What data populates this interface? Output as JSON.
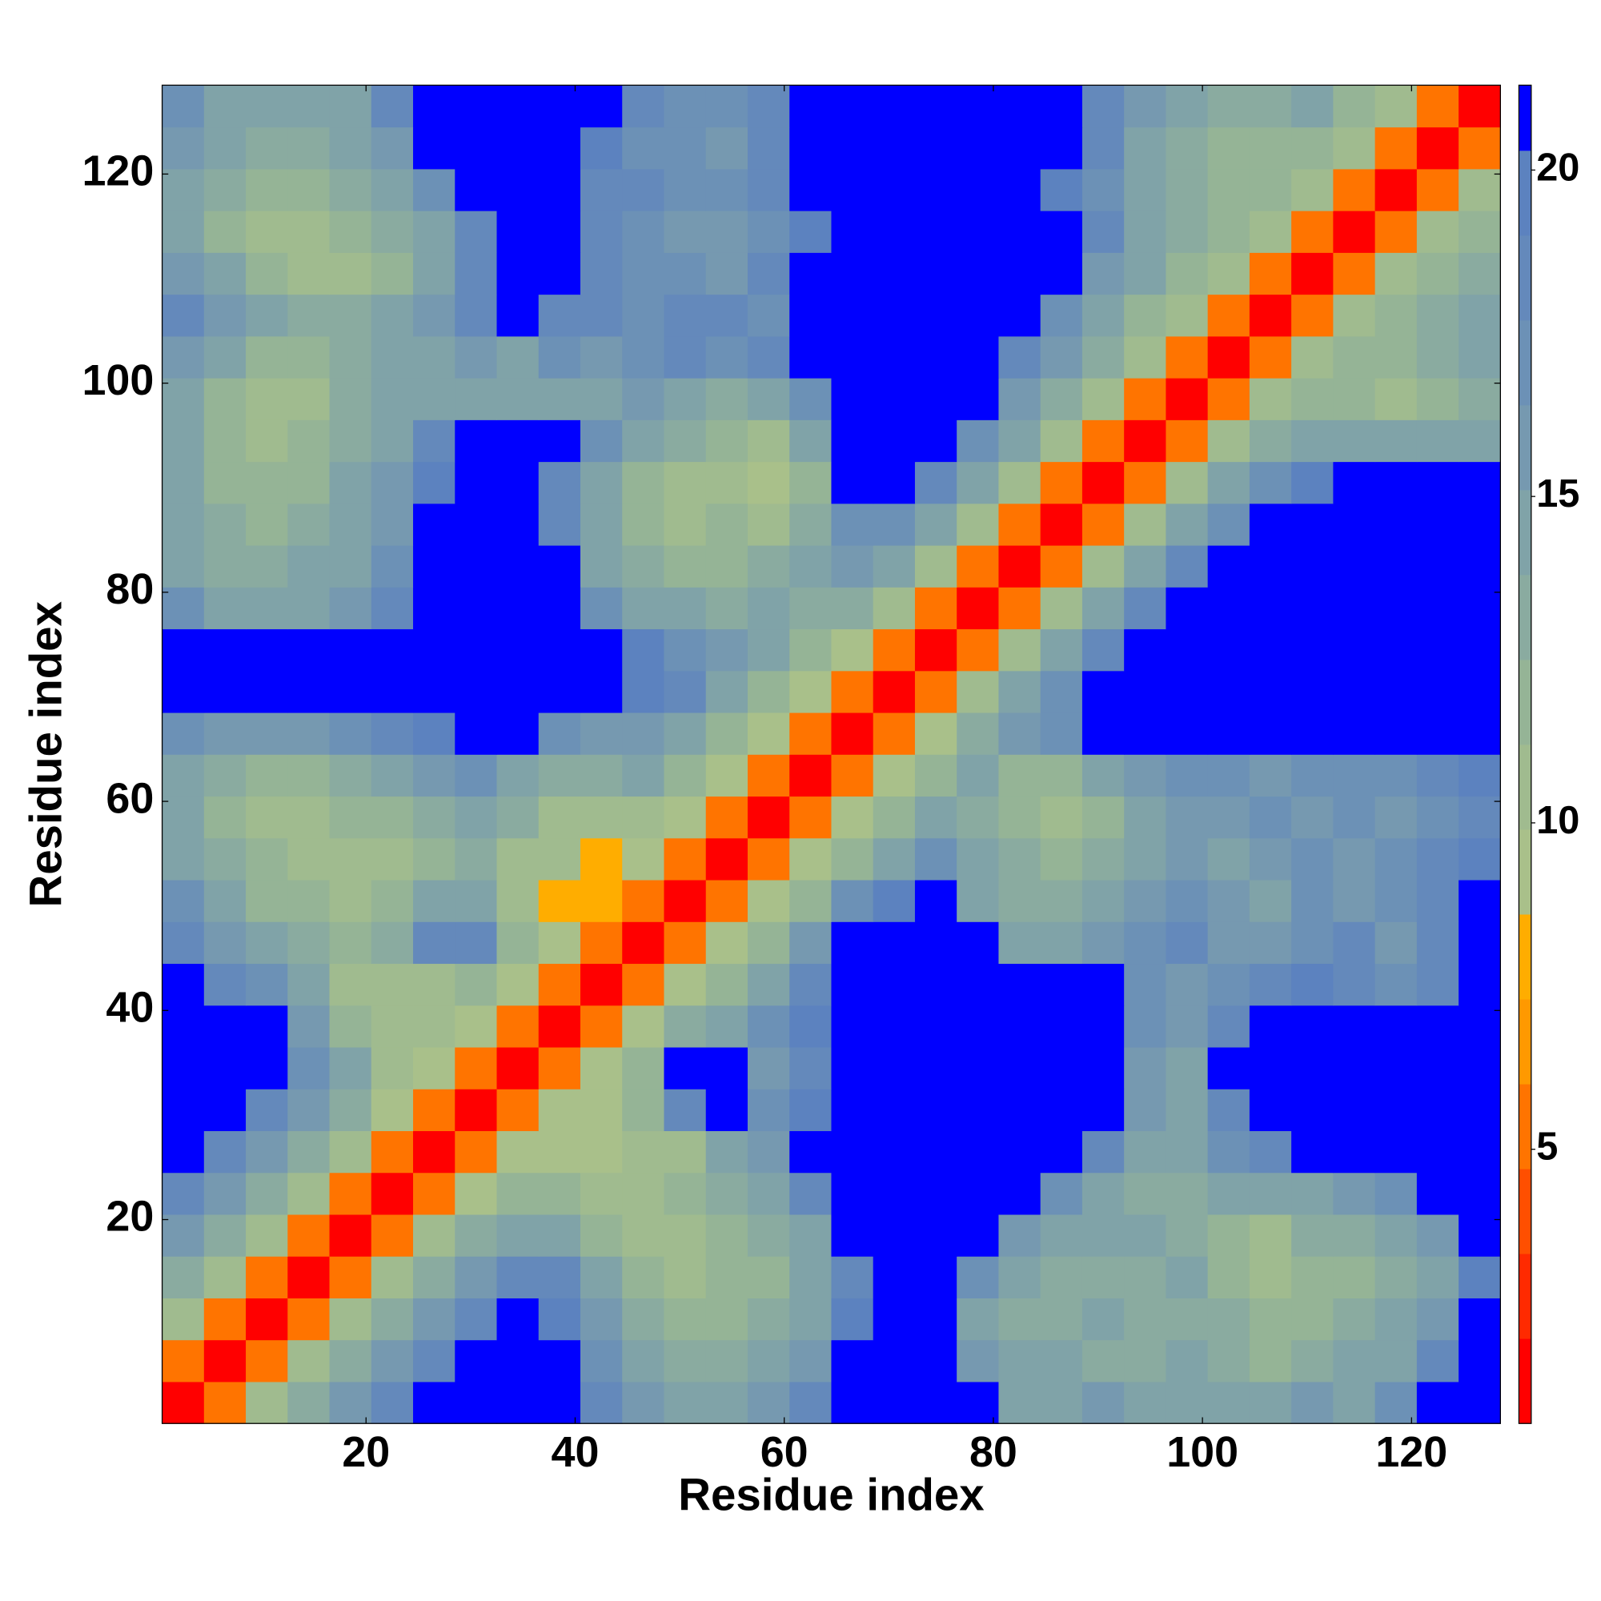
{
  "chart_data": {
    "type": "heatmap",
    "xlabel": "Residue index",
    "ylabel": "Residue index",
    "xlim": [
      0.5,
      128.5
    ],
    "ylim": [
      0.5,
      128.5
    ],
    "xticks": [
      20,
      40,
      60,
      80,
      100,
      120
    ],
    "yticks": [
      20,
      40,
      60,
      80,
      100,
      120
    ],
    "xbins": [
      0.5,
      4.5,
      8.5,
      12.5,
      16.5,
      20.5,
      24.5,
      28.5,
      32.5,
      36.5,
      40.5,
      44.5,
      48.5,
      52.5,
      56.5,
      60.5,
      64.5,
      68.5,
      72.5,
      76.5,
      80.5,
      84.5,
      88.5,
      92.5,
      96.5,
      100.5,
      104.5,
      108.5,
      112.5,
      116.5,
      120.5,
      124.5,
      128.5
    ],
    "ybins": [
      0.5,
      4.5,
      8.5,
      12.5,
      16.5,
      20.5,
      24.5,
      28.5,
      32.5,
      36.5,
      40.5,
      44.5,
      48.5,
      52.5,
      56.5,
      60.5,
      64.5,
      68.5,
      72.5,
      76.5,
      80.5,
      84.5,
      88.5,
      92.5,
      96.5,
      100.5,
      104.5,
      108.5,
      112.5,
      116.5,
      120.5,
      124.5,
      128.5
    ],
    "z": [
      [
        1.5,
        6,
        10,
        13,
        16,
        19,
        21,
        21,
        21,
        21,
        19,
        16,
        14,
        15,
        16,
        18,
        21,
        21,
        21,
        21,
        15,
        15,
        16,
        14,
        15,
        14,
        15,
        16,
        15,
        17,
        21,
        21
      ],
      [
        6,
        1.5,
        6,
        10,
        13,
        16,
        19,
        21,
        21,
        21,
        17,
        14,
        13,
        13,
        14,
        16,
        21,
        21,
        21,
        16,
        14,
        14,
        13,
        13,
        14,
        13,
        12,
        13,
        14,
        15,
        19,
        21
      ],
      [
        10,
        6,
        1.5,
        6,
        10,
        13,
        16,
        19,
        21,
        20,
        16,
        13,
        12,
        12,
        13,
        15,
        20,
        21,
        21,
        15,
        13,
        13,
        14,
        13,
        13,
        13,
        12,
        12,
        13,
        14,
        16,
        21
      ],
      [
        13,
        10,
        6,
        1.5,
        6,
        10,
        13,
        16,
        19,
        18,
        14,
        12,
        11,
        12,
        12,
        14,
        19,
        21,
        21,
        17,
        14,
        13,
        13,
        13,
        14,
        12,
        11,
        12,
        12,
        13,
        15,
        20
      ],
      [
        16,
        13,
        10,
        6,
        1.5,
        6,
        10,
        13,
        15,
        15,
        12,
        11,
        11,
        12,
        13,
        15,
        21,
        21,
        21,
        21,
        16,
        15,
        14,
        14,
        13,
        12,
        11,
        13,
        13,
        14,
        16,
        21
      ],
      [
        19,
        16,
        13,
        10,
        6,
        1.5,
        6,
        9,
        12,
        12,
        11,
        11,
        12,
        13,
        15,
        18,
        21,
        21,
        21,
        21,
        21,
        17,
        15,
        13,
        13,
        14,
        15,
        15,
        16,
        17,
        21,
        21
      ],
      [
        21,
        19,
        16,
        13,
        10,
        6,
        1.5,
        6,
        9,
        9,
        9,
        10,
        11,
        14,
        16,
        21,
        21,
        21,
        21,
        21,
        21,
        21,
        18,
        15,
        14,
        17,
        18,
        21,
        21,
        21,
        21,
        21
      ],
      [
        21,
        21,
        19,
        16,
        13,
        9,
        6,
        1.5,
        6,
        9,
        9,
        12,
        18,
        21,
        17,
        20,
        21,
        21,
        21,
        21,
        21,
        21,
        21,
        16,
        15,
        18,
        21,
        21,
        21,
        21,
        21,
        21
      ],
      [
        21,
        21,
        21,
        17,
        14,
        11,
        9,
        6,
        1.5,
        6,
        9,
        12,
        21,
        21,
        16,
        19,
        21,
        21,
        21,
        21,
        21,
        21,
        21,
        16,
        15,
        21,
        21,
        21,
        21,
        21,
        21,
        21
      ],
      [
        21,
        21,
        21,
        16,
        12,
        11,
        10,
        9,
        6,
        1.5,
        6,
        9,
        13,
        15,
        17,
        20,
        21,
        21,
        21,
        21,
        21,
        21,
        21,
        17,
        16,
        18,
        21,
        21,
        21,
        21,
        21,
        21
      ],
      [
        21,
        19,
        17,
        14,
        11,
        10,
        11,
        12,
        9,
        6,
        1.5,
        6,
        9,
        12,
        15,
        18,
        21,
        21,
        21,
        21,
        21,
        21,
        21,
        17,
        16,
        17,
        19,
        20,
        18,
        17,
        19,
        21
      ],
      [
        19,
        16,
        14,
        13,
        12,
        13,
        18,
        18,
        12,
        9,
        6,
        1.5,
        6,
        9,
        12,
        16,
        21,
        21,
        21,
        21,
        15,
        15,
        16,
        17,
        18,
        16,
        16,
        17,
        18,
        16,
        18,
        21
      ],
      [
        17,
        14,
        12,
        12,
        11,
        12,
        14,
        15,
        11,
        8,
        8,
        6,
        1.5,
        6,
        9,
        12,
        17,
        20,
        21,
        15,
        13,
        13,
        14,
        16,
        17,
        16,
        15,
        17,
        16,
        17,
        18,
        21
      ],
      [
        15,
        13,
        12,
        11,
        11,
        11,
        12,
        13,
        11,
        10,
        8,
        9,
        6,
        1.5,
        6,
        9,
        12,
        15,
        17,
        14,
        13,
        12,
        13,
        15,
        16,
        15,
        16,
        17,
        16,
        17,
        18,
        20
      ],
      [
        14,
        12,
        11,
        11,
        12,
        12,
        13,
        14,
        13,
        11,
        11,
        11,
        9,
        6,
        1.5,
        6,
        9,
        12,
        15,
        13,
        12,
        11,
        12,
        14,
        16,
        16,
        17,
        16,
        17,
        16,
        17,
        19
      ],
      [
        14,
        13,
        12,
        12,
        13,
        14,
        16,
        17,
        15,
        13,
        13,
        14,
        12,
        9,
        6,
        1.5,
        6,
        9,
        12,
        14,
        12,
        12,
        14,
        16,
        17,
        17,
        16,
        17,
        17,
        17,
        18,
        20
      ],
      [
        17,
        16,
        16,
        16,
        17,
        18,
        20,
        21,
        21,
        17,
        16,
        16,
        15,
        12,
        9,
        6,
        1.5,
        6,
        9,
        13,
        16,
        17,
        21,
        21,
        21,
        21,
        21,
        21,
        21,
        21,
        21,
        21
      ],
      [
        21,
        21,
        21,
        21,
        21,
        21,
        21,
        21,
        21,
        21,
        21,
        20,
        18,
        15,
        12,
        9,
        6,
        1.5,
        6,
        10,
        14,
        17,
        21,
        21,
        21,
        21,
        21,
        21,
        21,
        21,
        21,
        21
      ],
      [
        21,
        21,
        21,
        21,
        21,
        21,
        21,
        21,
        21,
        21,
        21,
        20,
        17,
        16,
        14,
        12,
        9,
        6,
        1.5,
        6,
        10,
        14,
        18,
        21,
        21,
        21,
        21,
        21,
        21,
        21,
        21,
        21
      ],
      [
        17,
        15,
        14,
        15,
        16,
        18,
        21,
        21,
        21,
        21,
        17,
        14,
        14,
        13,
        15,
        13,
        13,
        10,
        6,
        1.5,
        6,
        10,
        14,
        18,
        21,
        21,
        21,
        21,
        21,
        21,
        21,
        21
      ],
      [
        15,
        13,
        13,
        14,
        15,
        17,
        21,
        21,
        21,
        21,
        15,
        13,
        12,
        12,
        13,
        14,
        16,
        14,
        10,
        6,
        1.5,
        6,
        10,
        14,
        18,
        21,
        21,
        21,
        21,
        21,
        21,
        21
      ],
      [
        14,
        13,
        12,
        13,
        14,
        16,
        21,
        21,
        21,
        18,
        14,
        12,
        11,
        12,
        10,
        13,
        17,
        17,
        14,
        10,
        6,
        1.5,
        6,
        10,
        14,
        17,
        21,
        21,
        21,
        21,
        21,
        21
      ],
      [
        14,
        12,
        12,
        12,
        14,
        16,
        20,
        21,
        21,
        19,
        15,
        12,
        11,
        11,
        9,
        12,
        21,
        21,
        18,
        14,
        10,
        6,
        1.5,
        6,
        10,
        14,
        17,
        20,
        21,
        21,
        21,
        21
      ],
      [
        14,
        12,
        11,
        12,
        13,
        15,
        18,
        21,
        21,
        21,
        17,
        15,
        13,
        12,
        11,
        14,
        21,
        21,
        21,
        17,
        14,
        10,
        6,
        1.5,
        6,
        10,
        13,
        14,
        14,
        14,
        14,
        15
      ],
      [
        14,
        12,
        11,
        11,
        13,
        14,
        14,
        15,
        14,
        15,
        15,
        16,
        14,
        13,
        14,
        17,
        21,
        21,
        21,
        21,
        16,
        13,
        10,
        6,
        1.5,
        6,
        10,
        12,
        12,
        11,
        12,
        13
      ],
      [
        16,
        14,
        12,
        12,
        13,
        14,
        15,
        16,
        15,
        17,
        16,
        17,
        18,
        17,
        18,
        21,
        21,
        21,
        21,
        21,
        19,
        16,
        13,
        10,
        6,
        1.5,
        6,
        10,
        12,
        12,
        13,
        14
      ],
      [
        18,
        16,
        14,
        13,
        13,
        14,
        16,
        18,
        21,
        19,
        18,
        17,
        18,
        18,
        17,
        21,
        21,
        21,
        21,
        21,
        21,
        17,
        14,
        12,
        10,
        6,
        1.5,
        6,
        10,
        12,
        13,
        14
      ],
      [
        16,
        14,
        12,
        11,
        11,
        12,
        14,
        18,
        21,
        21,
        18,
        17,
        17,
        16,
        18,
        21,
        21,
        21,
        21,
        21,
        21,
        21,
        16,
        14,
        12,
        10,
        6,
        1.5,
        6,
        10,
        12,
        13
      ],
      [
        15,
        12,
        10,
        11,
        12,
        13,
        15,
        19,
        21,
        21,
        18,
        17,
        16,
        16,
        17,
        20,
        21,
        21,
        21,
        21,
        21,
        21,
        18,
        15,
        13,
        12,
        10,
        6,
        1.5,
        6,
        10,
        12
      ],
      [
        15,
        13,
        12,
        12,
        13,
        14,
        17,
        21,
        21,
        21,
        19,
        18,
        17,
        17,
        18,
        21,
        21,
        21,
        21,
        21,
        21,
        20,
        17,
        14,
        13,
        12,
        12,
        10,
        6,
        1.5,
        6,
        10
      ],
      [
        16,
        14,
        13,
        13,
        14,
        16,
        21,
        21,
        21,
        21,
        20,
        17,
        17,
        16,
        18,
        21,
        21,
        21,
        21,
        21,
        21,
        21,
        18,
        15,
        13,
        12,
        12,
        12,
        10,
        6,
        1.5,
        6
      ],
      [
        17,
        15,
        14,
        14,
        15,
        18,
        21,
        21,
        21,
        21,
        21,
        18,
        17,
        17,
        19,
        21,
        21,
        21,
        21,
        21,
        21,
        21,
        19,
        16,
        14,
        13,
        13,
        14,
        12,
        10,
        6,
        1.5
      ]
    ],
    "colorbar": {
      "bounds": [
        0.8,
        2.1,
        3.4,
        4.7,
        6.0,
        7.3,
        8.6,
        9.9,
        11.2,
        12.5,
        13.8,
        15.1,
        16.4,
        17.7,
        19.0,
        20.3,
        21.3
      ],
      "colors": [
        "#ff0000",
        "#ff2a00",
        "#ff4f00",
        "#ff7400",
        "#ff9900",
        "#ffad00",
        "#a9c08a",
        "#a0bb8f",
        "#95b496",
        "#8aaba0",
        "#80a3a8",
        "#7699b0",
        "#6c91b6",
        "#6489bb",
        "#5c82bf",
        "#0000ff"
      ],
      "ticks": [
        5,
        10,
        15,
        20
      ]
    }
  }
}
